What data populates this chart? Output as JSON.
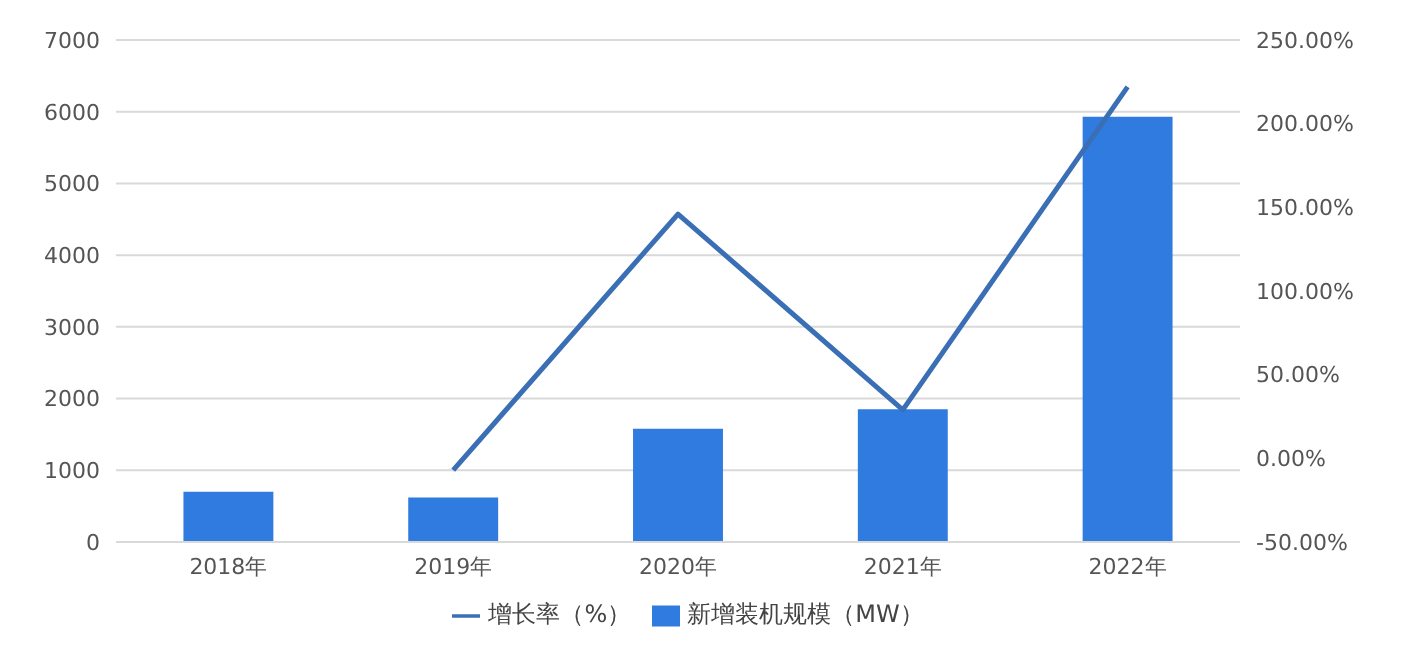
{
  "chart_data": {
    "type": "bar",
    "categories": [
      "2018年",
      "2019年",
      "2020年",
      "2021年",
      "2022年"
    ],
    "series": [
      {
        "name": "新增装机规模（MW）",
        "color": "#2f7be0",
        "values": [
          700,
          620,
          1580,
          1850,
          5930
        ]
      },
      {
        "name": "增长率（%）",
        "type": "line",
        "axis": "y2",
        "color": "#3a6fb5",
        "values": [
          null,
          -7,
          146,
          29,
          222
        ]
      }
    ],
    "ylim": [
      0,
      7000
    ],
    "yticks": [
      0,
      1000,
      2000,
      3000,
      4000,
      5000,
      6000,
      7000
    ],
    "y2lim": [
      -50,
      250
    ],
    "y2ticks": [
      {
        "value": -50,
        "label": "-50.00%"
      },
      {
        "value": 0,
        "label": "0.00%"
      },
      {
        "value": 50,
        "label": "50.00%"
      },
      {
        "value": 100,
        "label": "100.00%"
      },
      {
        "value": 150,
        "label": "150.00%"
      },
      {
        "value": 200,
        "label": "200.00%"
      },
      {
        "value": 250,
        "label": "250.00%"
      }
    ],
    "grid": "y",
    "legend": "bottom",
    "marker": "none"
  }
}
